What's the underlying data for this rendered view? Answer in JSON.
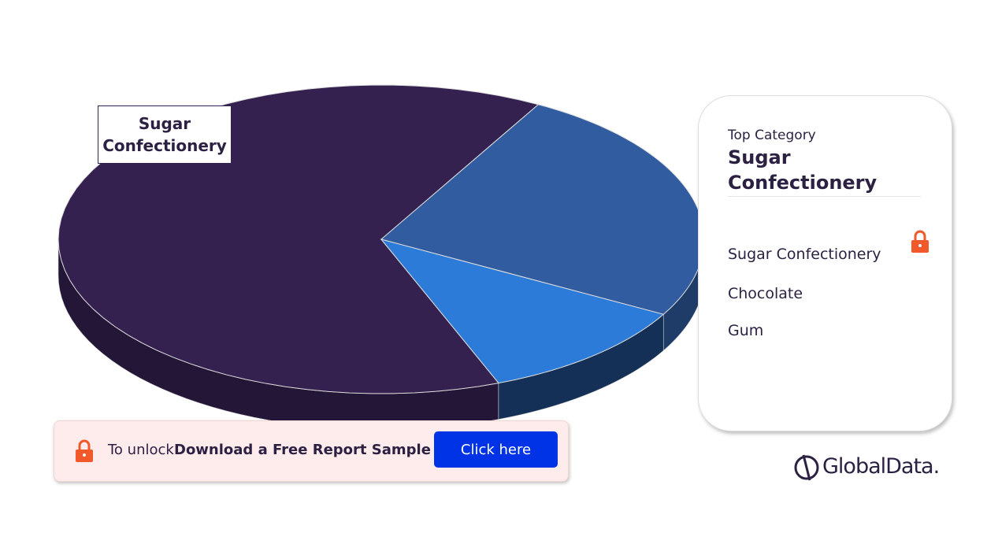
{
  "chart_data": {
    "type": "pie3d",
    "categories": [
      "Sugar Confectionery",
      "Chocolate",
      "Gum"
    ],
    "values": [
      64,
      25,
      11
    ],
    "colors": [
      "#35214f",
      "#315c9f",
      "#2d7bd8"
    ],
    "side_colors": [
      "#241637",
      "#1f3c69",
      "#143056"
    ]
  },
  "panel": {
    "top_category_label": "Top Category",
    "top_category": "Sugar Confectionery"
  },
  "banner": {
    "prefix": "To unlock",
    "cta": "Download a Free Report Sample",
    "button": "Click here"
  },
  "logo": "GlobalData."
}
